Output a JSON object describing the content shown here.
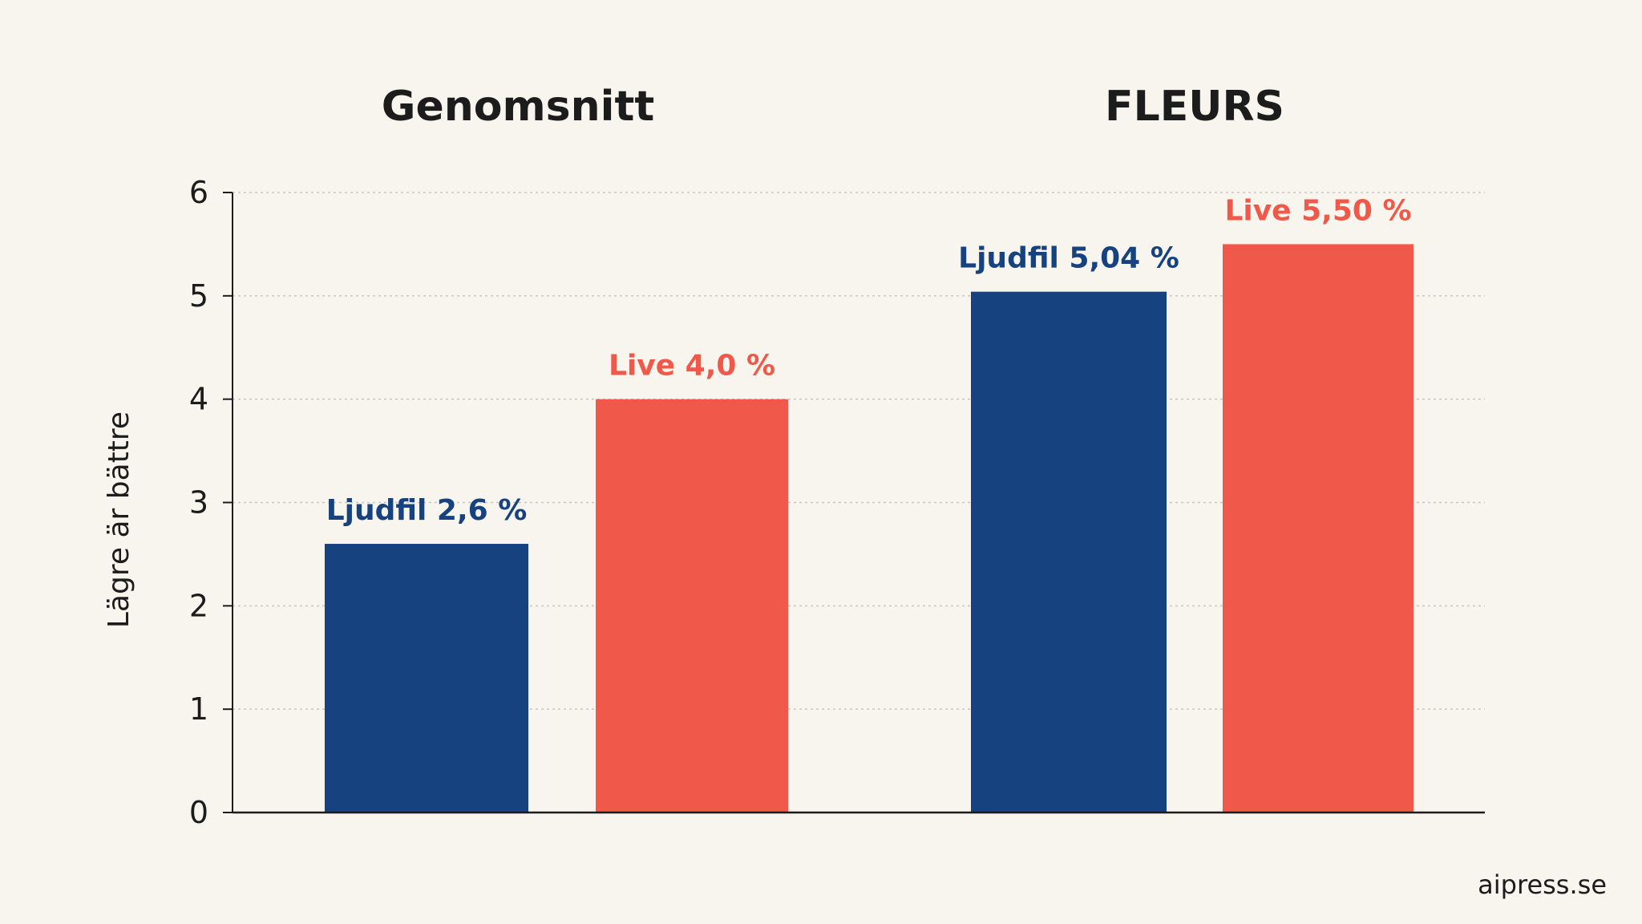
{
  "chart_data": {
    "type": "bar",
    "panels": [
      {
        "title": "Genomsnitt",
        "bars": [
          {
            "label": "Ljudfil 2,6 %",
            "value": 2.6,
            "color": "#16427f"
          },
          {
            "label": "Live 4,0 %",
            "value": 4.0,
            "color": "#f0594a"
          }
        ]
      },
      {
        "title": "FLEURS",
        "bars": [
          {
            "label": "Ljudfil 5,04 %",
            "value": 5.04,
            "color": "#16427f"
          },
          {
            "label": "Live 5,50 %",
            "value": 5.5,
            "color": "#f0594a"
          }
        ]
      }
    ],
    "yticks": [
      "0",
      "1",
      "2",
      "3",
      "4",
      "5",
      "6"
    ],
    "ylim": [
      0,
      6
    ],
    "ylabel": "Lägre är bättre",
    "xlabel": "",
    "grid": true,
    "colors": {
      "ljudfil": "#16427f",
      "live": "#f0594a",
      "background": "#f8f5ee"
    }
  },
  "source": "aipress.se"
}
